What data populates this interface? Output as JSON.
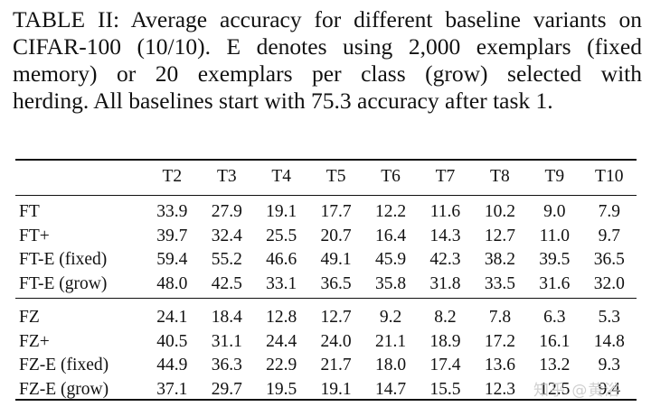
{
  "caption": {
    "line1": "TABLE II: Average accuracy for different baseline variants on",
    "line2": "CIFAR-100 (10/10). E denotes using 2,000 exemplars (fixed",
    "line3": "memory) or 20 exemplars per class (grow) selected with",
    "line4": "herding. All baselines start with 75.3 accuracy after task 1."
  },
  "table": {
    "headers": [
      "",
      "T2",
      "T3",
      "T4",
      "T5",
      "T6",
      "T7",
      "T8",
      "T9",
      "T10"
    ],
    "group1": [
      {
        "name": "FT",
        "values": [
          "33.9",
          "27.9",
          "19.1",
          "17.7",
          "12.2",
          "11.6",
          "10.2",
          "9.0",
          "7.9"
        ]
      },
      {
        "name": "FT+",
        "values": [
          "39.7",
          "32.4",
          "25.5",
          "20.7",
          "16.4",
          "14.3",
          "12.7",
          "11.0",
          "9.7"
        ]
      },
      {
        "name": "FT-E (fixed)",
        "values": [
          "59.4",
          "55.2",
          "46.6",
          "49.1",
          "45.9",
          "42.3",
          "38.2",
          "39.5",
          "36.5"
        ]
      },
      {
        "name": "FT-E (grow)",
        "values": [
          "48.0",
          "42.5",
          "33.1",
          "36.5",
          "35.8",
          "31.8",
          "33.5",
          "31.6",
          "32.0"
        ]
      }
    ],
    "group2": [
      {
        "name": "FZ",
        "values": [
          "24.1",
          "18.4",
          "12.8",
          "12.7",
          "9.2",
          "8.2",
          "7.8",
          "6.3",
          "5.3"
        ]
      },
      {
        "name": "FZ+",
        "values": [
          "40.5",
          "31.1",
          "24.4",
          "24.0",
          "21.1",
          "18.9",
          "17.2",
          "16.1",
          "14.8"
        ]
      },
      {
        "name": "FZ-E (fixed)",
        "values": [
          "44.9",
          "36.3",
          "22.9",
          "21.7",
          "18.0",
          "17.4",
          "13.6",
          "13.2",
          "9.3"
        ]
      },
      {
        "name": "FZ-E (grow)",
        "values": [
          "37.1",
          "29.7",
          "19.5",
          "19.1",
          "14.7",
          "15.5",
          "12.3",
          "12.5",
          "9.4"
        ]
      }
    ]
  },
  "watermark": "知乎 @黄浴"
}
